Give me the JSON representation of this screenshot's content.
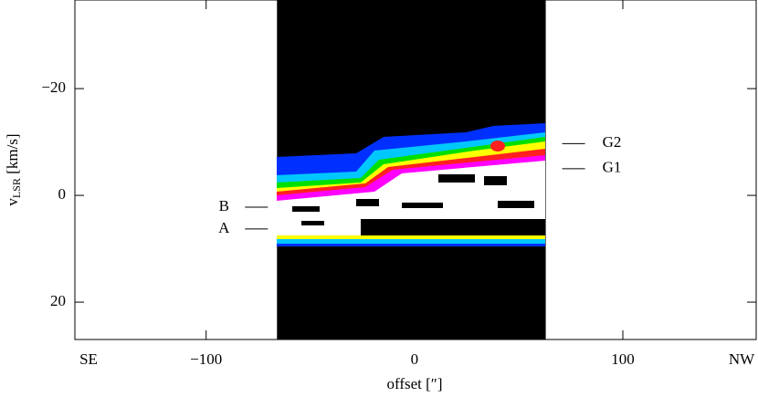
{
  "chart_data": {
    "type": "heatmap",
    "xlabel": "offset [″]",
    "ylabel": "v",
    "ylabel_sub": "LSR",
    "ylabel_unit": " [km/s]",
    "xlim": [
      -163,
      164
    ],
    "ylim": [
      -36.6,
      27
    ],
    "y_inverted": true,
    "xticks": [
      {
        "value": -100,
        "label": "−100"
      },
      0,
      100
    ],
    "yticks": [
      {
        "value": -20,
        "label": "−20"
      },
      0,
      20
    ],
    "x_end_labels": [
      "SE",
      "NW"
    ],
    "map_xrange": [
      -66,
      63
    ],
    "annotations": [
      {
        "label": "B",
        "v": 2.2,
        "side": "left"
      },
      {
        "label": "A",
        "v": 6.3,
        "side": "left"
      },
      {
        "label": "G2",
        "v": -9.7,
        "side": "right"
      },
      {
        "label": "G1",
        "v": -5,
        "side": "right"
      }
    ]
  }
}
